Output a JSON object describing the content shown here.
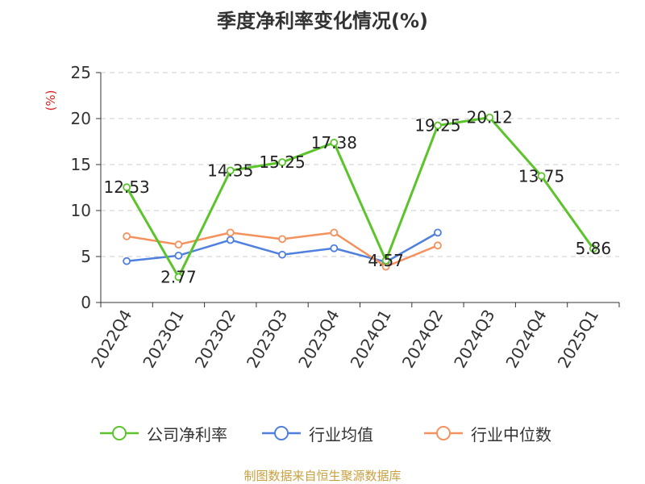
{
  "title": "季度净利率变化情况(%)",
  "source": "制图数据来自恒生聚源数据库",
  "chart_data": {
    "type": "line",
    "title": "季度净利率变化情况(%)",
    "ylabel": "(%)",
    "xlabel": "",
    "categories": [
      "2022Q4",
      "2023Q1",
      "2023Q2",
      "2023Q3",
      "2023Q4",
      "2024Q1",
      "2024Q2",
      "2024Q3",
      "2024Q4",
      "2025Q1"
    ],
    "ylim": [
      0,
      25
    ],
    "yticks": [
      0,
      5,
      10,
      15,
      20,
      25
    ],
    "grid": true,
    "legend_position": "bottom",
    "series": [
      {
        "name": "公司净利率",
        "color": "#5cc42b",
        "labeled": true,
        "values": [
          12.53,
          2.77,
          14.35,
          15.25,
          17.38,
          4.57,
          19.25,
          20.12,
          13.75,
          5.86
        ]
      },
      {
        "name": "行业均值",
        "color": "#4f7fdf",
        "labeled": false,
        "values": [
          4.5,
          5.1,
          6.8,
          5.2,
          5.9,
          4.4,
          7.6,
          null,
          null,
          null
        ]
      },
      {
        "name": "行业中位数",
        "color": "#f4915d",
        "labeled": false,
        "values": [
          7.2,
          6.3,
          7.6,
          6.9,
          7.6,
          3.9,
          6.2,
          null,
          null,
          null
        ]
      }
    ]
  }
}
